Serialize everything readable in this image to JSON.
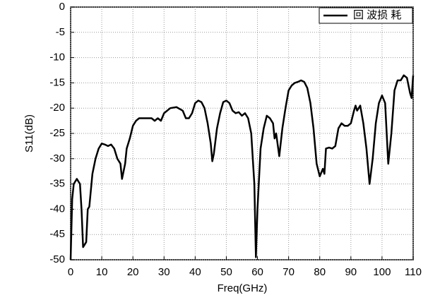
{
  "chart_data": {
    "type": "line",
    "xlabel": "Freq(GHz)",
    "ylabel": "S11(dB)",
    "x": [
      0,
      0.5,
      1,
      2,
      3,
      3.5,
      4,
      5,
      5.5,
      6,
      7,
      8,
      9,
      10,
      11,
      12,
      13,
      14,
      15,
      16,
      16.5,
      17.5,
      18,
      19,
      20,
      21,
      22,
      24,
      26,
      27,
      28,
      29,
      30,
      32,
      34,
      36,
      37,
      38,
      39,
      40,
      41,
      42,
      43,
      44,
      45,
      45.5,
      46,
      47,
      48,
      49,
      50,
      51,
      52,
      53,
      54,
      55,
      56,
      57,
      58,
      59,
      59.5,
      60,
      61,
      62,
      63,
      64,
      65,
      65.5,
      66,
      67,
      68,
      69,
      70,
      71,
      72,
      73,
      74,
      75,
      76,
      77,
      78,
      79,
      80,
      81,
      81.5,
      82,
      83,
      84,
      85,
      86,
      87,
      88,
      89,
      90,
      91,
      91.5,
      92,
      93,
      94,
      95,
      96,
      97,
      98,
      99,
      100,
      101,
      101.5,
      102,
      103,
      104,
      105,
      106,
      107,
      108,
      109,
      109.5,
      110
    ],
    "series": [
      {
        "name": "回 波损 耗",
        "color": "#000000",
        "values": [
          -50,
          -38,
          -35,
          -34,
          -35,
          -40,
          -47.5,
          -46.5,
          -40,
          -39.5,
          -33,
          -30,
          -28,
          -27,
          -27.2,
          -27.5,
          -27.2,
          -28,
          -30,
          -31,
          -34,
          -31,
          -28,
          -26,
          -23.5,
          -22.5,
          -22,
          -22,
          -22,
          -22.5,
          -22,
          -22.5,
          -21,
          -20,
          -19.8,
          -20.5,
          -22,
          -22,
          -21,
          -19,
          -18.5,
          -18.8,
          -20,
          -23,
          -27,
          -30.5,
          -29,
          -24,
          -21,
          -18.8,
          -18.5,
          -19,
          -20.5,
          -21,
          -20.8,
          -21.5,
          -21,
          -22,
          -25,
          -35,
          -49.5,
          -40,
          -28,
          -24,
          -21.5,
          -22,
          -23,
          -26,
          -25,
          -29.5,
          -24,
          -20,
          -16.5,
          -15.5,
          -15,
          -14.8,
          -14.5,
          -14.8,
          -16,
          -19,
          -24,
          -31,
          -33.5,
          -32,
          -33,
          -28,
          -27.8,
          -28,
          -27.5,
          -24,
          -23,
          -23.5,
          -23.5,
          -23,
          -20.5,
          -19.5,
          -20.5,
          -19.5,
          -23,
          -28,
          -35,
          -30,
          -23,
          -19,
          -17.5,
          -19,
          -25,
          -31,
          -25,
          -16.5,
          -14.5,
          -14.5,
          -13.5,
          -14,
          -17,
          -18,
          -13.5
        ]
      }
    ],
    "xlim": [
      0,
      110
    ],
    "xticks": [
      0,
      10,
      20,
      30,
      40,
      50,
      60,
      70,
      80,
      90,
      100,
      110
    ],
    "ylim": [
      -50,
      0
    ],
    "yticks": [
      0,
      -5,
      -10,
      -15,
      -20,
      -25,
      -30,
      -35,
      -40,
      -45,
      -50
    ],
    "grid": true,
    "legend": "upper right"
  }
}
